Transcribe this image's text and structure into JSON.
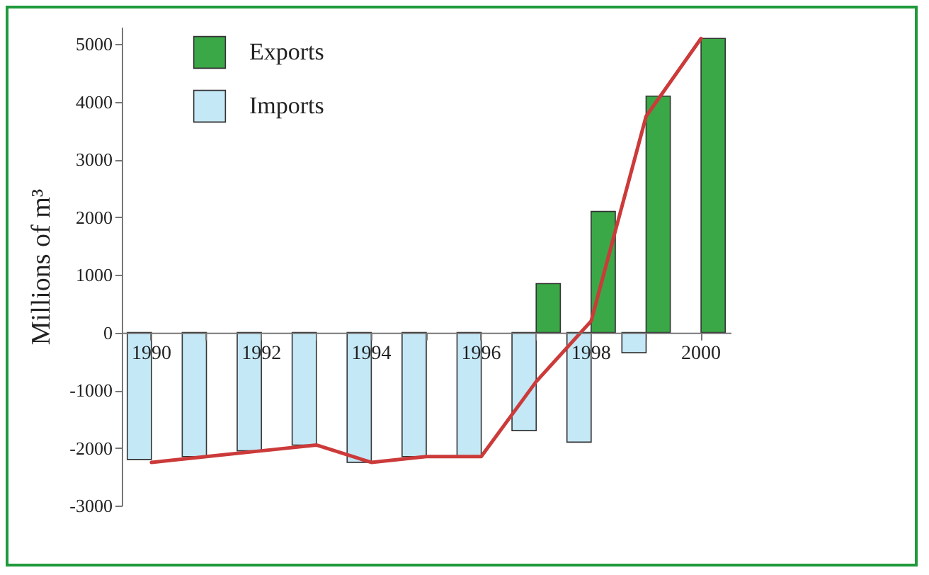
{
  "chart_data": {
    "type": "bar",
    "ylabel": "Millions of m³",
    "categories": [
      "1990",
      null,
      "1992",
      null,
      "1994",
      null,
      "1996",
      null,
      "1998",
      null,
      "2000"
    ],
    "series": [
      {
        "name": "Exports",
        "color": "#3aa846",
        "values": [
          null,
          null,
          null,
          null,
          null,
          null,
          null,
          850,
          2100,
          4100,
          5100
        ]
      },
      {
        "name": "Imports",
        "color": "#c4e8f6",
        "values": [
          -2200,
          -2150,
          -2050,
          -1950,
          -2250,
          -2150,
          -2150,
          -1700,
          -1900,
          -350,
          null
        ]
      },
      {
        "type": "line",
        "color": "#cc3a3a",
        "values": [
          -2250,
          -2150,
          -2050,
          -1950,
          -2250,
          -2150,
          -2150,
          -850,
          200,
          3750,
          5100
        ]
      }
    ],
    "ylim": [
      -3000,
      5300
    ],
    "yticks": [
      -3000,
      -2000,
      -1000,
      0,
      1000,
      2000,
      3000,
      4000,
      5000
    ],
    "grid": false,
    "legend": "top left"
  }
}
